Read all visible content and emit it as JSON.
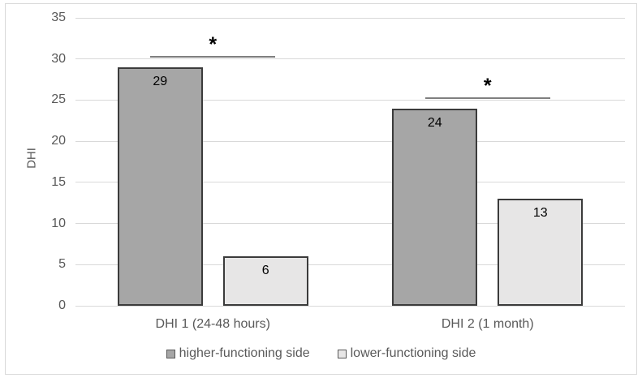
{
  "chart_data": {
    "type": "bar",
    "title": "",
    "xlabel": "",
    "ylabel": "DHI",
    "categories": [
      "DHI 1 (24-48 hours)",
      "DHI 2 (1 month)"
    ],
    "series": [
      {
        "name": "higher-functioning side",
        "values": [
          29,
          24
        ],
        "fill": "#a6a6a6",
        "border": "#3b3b3b"
      },
      {
        "name": "lower-functioning side",
        "values": [
          6,
          13
        ],
        "fill": "#e7e6e6",
        "border": "#3b3b3b"
      }
    ],
    "ylim": [
      0,
      35
    ],
    "yticks": [
      0,
      5,
      10,
      15,
      20,
      25,
      30,
      35
    ],
    "grid": true,
    "legend_position": "bottom",
    "annotations": [
      {
        "type": "significance-bracket",
        "label": "*",
        "category_index": 0
      },
      {
        "type": "significance-bracket",
        "label": "*",
        "category_index": 1
      }
    ]
  },
  "colors": {
    "background": "#ffffff",
    "frame_border": "#d9d9d9",
    "gridline": "#d9d9d9",
    "axis_text": "#595959",
    "value_label": "#000000",
    "sig_line": "#7f7f7f",
    "sig_label": "#000000",
    "legend_text": "#595959",
    "legend_swatch_border": "#595959"
  }
}
